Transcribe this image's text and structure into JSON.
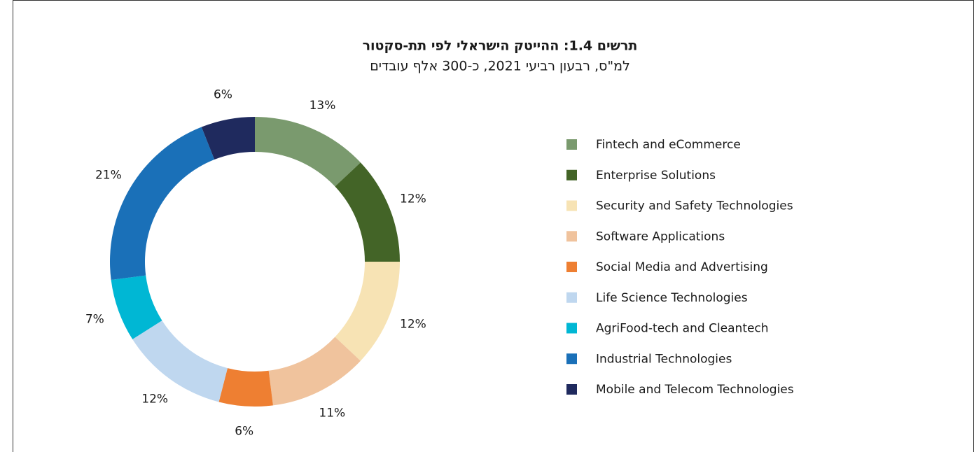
{
  "chart_data": {
    "type": "donut",
    "title": "תרשים 1.4: ההייטק הישראלי לפי תת-סקטור",
    "subtitle": "למ\"ס, רבעון רביעי 2021, כ-300 אלף עובדים",
    "categories": [
      "Fintech and eCommerce",
      "Enterprise Solutions",
      "Security and Safety Technologies",
      "Software Applications",
      "Social Media and Advertising",
      "Life Science Technologies",
      "AgriFood-tech and Cleantech",
      "Industrial Technologies",
      "Mobile and Telecom Technologies"
    ],
    "values": [
      13,
      12,
      12,
      11,
      6,
      12,
      7,
      21,
      6
    ],
    "value_labels": [
      "13%",
      "12%",
      "12%",
      "11%",
      "6%",
      "12%",
      "7%",
      "21%",
      "6%"
    ],
    "colors": [
      "#7a9a6e",
      "#436427",
      "#f7e3b4",
      "#f0c39d",
      "#ee7f32",
      "#bfd7ef",
      "#00b7d4",
      "#1a70b8",
      "#1f2a5e"
    ],
    "legend": "right"
  }
}
